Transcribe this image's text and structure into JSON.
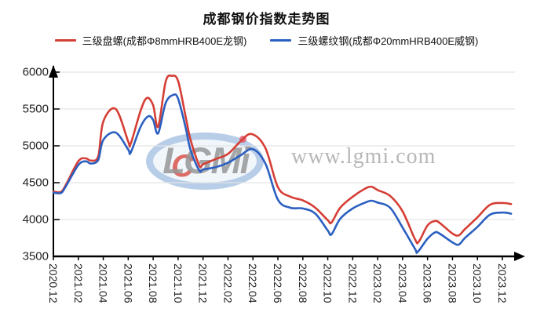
{
  "chart_data": {
    "type": "line",
    "title": "成都钢价指数走势图",
    "ylabel": "",
    "xlabel": "",
    "ylim": [
      3500,
      6000
    ],
    "y_ticks": [
      3500,
      4000,
      4500,
      5000,
      5500,
      6000
    ],
    "x_tick_labels": [
      "2020.12",
      "2021.02",
      "2021.04",
      "2021.06",
      "2021.08",
      "2021.10",
      "2021.12",
      "2022.02",
      "2022.04",
      "2022.06",
      "2022.08",
      "2022.10",
      "2022.12",
      "2023.02",
      "2023.04",
      "2023.06",
      "2023.08",
      "2023.10",
      "2023.12"
    ],
    "x_axis_note": "series points use month index: 0 = 2020.12, 36 = 2023.12, one unit = 1 month",
    "grid": "horizontal-only",
    "legend_position": "top",
    "axis_color": "#000000",
    "grid_color": "#e4e4e4",
    "label_color": "#222222",
    "series": [
      {
        "name": "三级盘螺(成都Φ8mmHRB400E龙钢)",
        "color": "#d53e35",
        "points": [
          [
            0,
            4380
          ],
          [
            0.6,
            4375
          ],
          [
            1,
            4470
          ],
          [
            2,
            4790
          ],
          [
            2.6,
            4830
          ],
          [
            3,
            4800
          ],
          [
            3.6,
            4860
          ],
          [
            4,
            5330
          ],
          [
            5,
            5500
          ],
          [
            6,
            5060
          ],
          [
            6.2,
            5030
          ],
          [
            7,
            5480
          ],
          [
            7.5,
            5650
          ],
          [
            8,
            5550
          ],
          [
            8.4,
            5260
          ],
          [
            9,
            5870
          ],
          [
            9.5,
            5950
          ],
          [
            10,
            5880
          ],
          [
            10.6,
            5400
          ],
          [
            11,
            5080
          ],
          [
            11.7,
            4730
          ],
          [
            12,
            4750
          ],
          [
            13,
            4820
          ],
          [
            14,
            4890
          ],
          [
            15,
            5060
          ],
          [
            15.9,
            5160
          ],
          [
            17,
            4970
          ],
          [
            18,
            4440
          ],
          [
            19,
            4310
          ],
          [
            20,
            4260
          ],
          [
            21,
            4160
          ],
          [
            22,
            3990
          ],
          [
            22.3,
            3960
          ],
          [
            23,
            4160
          ],
          [
            24,
            4310
          ],
          [
            25,
            4420
          ],
          [
            25.5,
            4445
          ],
          [
            26,
            4400
          ],
          [
            27,
            4320
          ],
          [
            28,
            4110
          ],
          [
            29,
            3730
          ],
          [
            29.3,
            3700
          ],
          [
            30,
            3920
          ],
          [
            30.6,
            3980
          ],
          [
            31,
            3950
          ],
          [
            32,
            3810
          ],
          [
            32.5,
            3785
          ],
          [
            33,
            3870
          ],
          [
            34,
            4030
          ],
          [
            35,
            4200
          ],
          [
            36,
            4225
          ],
          [
            36.7,
            4210
          ]
        ]
      },
      {
        "name": "三级螺纹钢(成都Φ20mmHRB400E威钢)",
        "color": "#2b5fc0",
        "points": [
          [
            0,
            4365
          ],
          [
            0.6,
            4360
          ],
          [
            1,
            4450
          ],
          [
            2,
            4740
          ],
          [
            2.6,
            4790
          ],
          [
            3,
            4760
          ],
          [
            3.6,
            4810
          ],
          [
            4,
            5080
          ],
          [
            5,
            5180
          ],
          [
            6,
            4950
          ],
          [
            6.2,
            4910
          ],
          [
            7,
            5260
          ],
          [
            7.6,
            5400
          ],
          [
            8,
            5350
          ],
          [
            8.4,
            5170
          ],
          [
            9,
            5580
          ],
          [
            9.6,
            5690
          ],
          [
            10,
            5640
          ],
          [
            10.6,
            5250
          ],
          [
            11,
            4940
          ],
          [
            11.7,
            4665
          ],
          [
            12,
            4680
          ],
          [
            13,
            4710
          ],
          [
            14,
            4770
          ],
          [
            15,
            4870
          ],
          [
            16,
            4955
          ],
          [
            17,
            4760
          ],
          [
            18,
            4270
          ],
          [
            19,
            4160
          ],
          [
            20,
            4150
          ],
          [
            21,
            4080
          ],
          [
            22,
            3850
          ],
          [
            22.3,
            3800
          ],
          [
            23,
            4010
          ],
          [
            24,
            4150
          ],
          [
            25,
            4230
          ],
          [
            25.5,
            4255
          ],
          [
            26,
            4230
          ],
          [
            27,
            4160
          ],
          [
            28,
            3890
          ],
          [
            29,
            3600
          ],
          [
            29.2,
            3560
          ],
          [
            30,
            3740
          ],
          [
            30.6,
            3825
          ],
          [
            31,
            3805
          ],
          [
            32,
            3690
          ],
          [
            32.5,
            3660
          ],
          [
            33,
            3750
          ],
          [
            34,
            3900
          ],
          [
            35,
            4065
          ],
          [
            36,
            4095
          ],
          [
            36.7,
            4080
          ]
        ]
      }
    ],
    "watermark": {
      "logo_text": "LGMi",
      "url_text": "www.lgmi.com"
    }
  }
}
